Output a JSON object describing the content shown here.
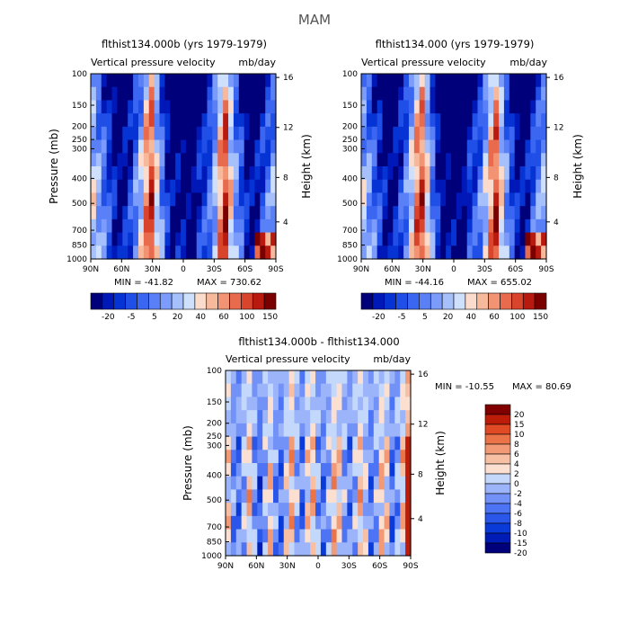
{
  "page": {
    "title": "MAM"
  },
  "palettes": {
    "full": [
      "#00007a",
      "#0018b8",
      "#0634d4",
      "#1f4fe6",
      "#3a66f2",
      "#5a80f7",
      "#7b9cfa",
      "#a6c0fb",
      "#cfe0fd",
      "#fbdccc",
      "#f7b99c",
      "#f29474",
      "#e86b4e",
      "#d8442c",
      "#b91a10",
      "#7a0000"
    ],
    "diff": [
      "#00007a",
      "#001cb6",
      "#0a3ad8",
      "#2a57ea",
      "#4d74f4",
      "#7292f8",
      "#9cb4fa",
      "#c4d8fc",
      "#fbe0d2",
      "#f7c0a4",
      "#f29a76",
      "#ea7448",
      "#e04a24",
      "#bd1c08",
      "#800000"
    ]
  },
  "chart_data": [
    {
      "type": "heatmap",
      "title": "flthist134.000b (yrs 1979-1979)",
      "subtitle_left": "Vertical pressure velocity",
      "subtitle_right": "mb/day",
      "ylabel": "Pressure (mb)",
      "ylabel_right": "Height (km)",
      "x_ticks": [
        "90N",
        "60N",
        "30N",
        "0",
        "30S",
        "60S",
        "90S"
      ],
      "y_ticks": [
        "100",
        "150",
        "200",
        "250",
        "300",
        "400",
        "500",
        "700",
        "850",
        "1000"
      ],
      "y_ticks_right": [
        "16",
        "12",
        "8",
        "4"
      ],
      "min_text": "MIN = -41.82",
      "max_text": "MAX = 730.62",
      "colorbar_labels": [
        "-20",
        "-5",
        "5",
        "20",
        "40",
        "60",
        "100",
        "150"
      ],
      "palette": "full",
      "pattern": [
        0.55,
        0.45,
        0.35,
        0.25,
        0.15,
        0.05,
        0.12,
        0.22,
        0.38,
        0.52,
        0.75,
        0.88,
        0.58,
        0.38,
        0.18,
        0.05,
        0.08,
        0.04,
        0.02,
        0.03,
        0.18,
        0.22,
        0.32,
        0.48,
        0.72,
        0.9,
        0.62,
        0.42,
        0.28,
        0.12,
        0.08,
        0.15,
        0.25,
        0.35,
        0.45
      ]
    },
    {
      "type": "heatmap",
      "title": "flthist134.000 (yrs 1979-1979)",
      "subtitle_left": "Vertical pressure velocity",
      "subtitle_right": "mb/day",
      "ylabel_right": "Height (km)",
      "x_ticks": [
        "90N",
        "60N",
        "30N",
        "0",
        "30S",
        "60S",
        "90S"
      ],
      "y_ticks": [
        "100",
        "150",
        "200",
        "250",
        "300",
        "400",
        "500",
        "700",
        "850",
        "1000"
      ],
      "y_ticks_right": [
        "16",
        "12",
        "8",
        "4"
      ],
      "min_text": "MIN = -44.16",
      "max_text": "MAX = 655.02",
      "colorbar_labels": [
        "-20",
        "-5",
        "5",
        "20",
        "40",
        "60",
        "100",
        "150"
      ],
      "palette": "full",
      "pattern": [
        0.5,
        0.42,
        0.32,
        0.22,
        0.12,
        0.06,
        0.14,
        0.24,
        0.36,
        0.55,
        0.78,
        0.86,
        0.6,
        0.36,
        0.16,
        0.04,
        0.06,
        0.03,
        0.02,
        0.04,
        0.2,
        0.25,
        0.35,
        0.52,
        0.74,
        0.88,
        0.6,
        0.4,
        0.26,
        0.12,
        0.1,
        0.16,
        0.28,
        0.38,
        0.48
      ]
    },
    {
      "type": "heatmap",
      "title": "flthist134.000b - flthist134.000",
      "subtitle_left": "Vertical pressure velocity",
      "subtitle_right": "mb/day",
      "ylabel": "Pressure (mb)",
      "ylabel_right": "Height (km)",
      "x_ticks": [
        "90N",
        "60N",
        "30N",
        "0",
        "30S",
        "60S",
        "90S"
      ],
      "y_ticks": [
        "100",
        "150",
        "200",
        "250",
        "300",
        "400",
        "500",
        "700",
        "850",
        "1000"
      ],
      "y_ticks_right": [
        "16",
        "12",
        "8",
        "4"
      ],
      "min_text": "MIN = -10.55",
      "max_text": "MAX =   80.69",
      "colorbar_labels": [
        "20",
        "15",
        "10",
        "8",
        "6",
        "4",
        "2",
        "0",
        "-2",
        "-4",
        "-6",
        "-8",
        "-10",
        "-15",
        "-20"
      ],
      "palette": "diff",
      "pattern": [
        0.55,
        0.35,
        0.3,
        0.45,
        0.62,
        0.4,
        0.25,
        0.45,
        0.6,
        0.35,
        0.28,
        0.5,
        0.65,
        0.42,
        0.3,
        0.55,
        0.62,
        0.38,
        0.3,
        0.45,
        0.62,
        0.58,
        0.4,
        0.32,
        0.45,
        0.62,
        0.48,
        0.3,
        0.4,
        0.6,
        0.55,
        0.3,
        0.4,
        0.6,
        0.85
      ]
    }
  ]
}
